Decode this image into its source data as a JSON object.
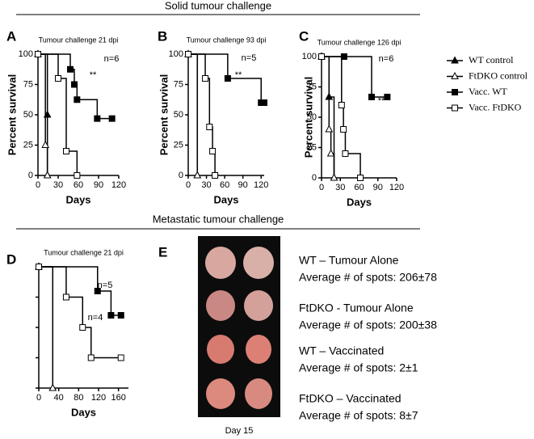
{
  "headings": {
    "solid": "Solid tumour challenge",
    "metastatic": "Metastatic tumour challenge"
  },
  "chart_data": [
    {
      "type": "step",
      "panel_label": "A",
      "title": "Tumour challenge 21 dpi",
      "xlabel": "Days",
      "ylabel": "Percent survival",
      "xlim": [
        0,
        120
      ],
      "xticks": [
        0,
        30,
        60,
        90,
        120
      ],
      "ylim": [
        0,
        100
      ],
      "yticks": [
        0,
        25,
        50,
        75,
        100
      ],
      "ytick_labels": true,
      "annotations": [
        "n=6",
        "**"
      ],
      "series": [
        {
          "name": "WT control",
          "color": "#000000",
          "marker": "triangle",
          "filled": true,
          "x": [
            0,
            14,
            14
          ],
          "values": [
            100,
            50,
            0
          ]
        },
        {
          "name": "FtDKO control",
          "color": "#000000",
          "marker": "triangle",
          "filled": false,
          "x": [
            0,
            11,
            14
          ],
          "values": [
            100,
            25,
            0
          ]
        },
        {
          "name": "Vacc. WT",
          "color": "#000000",
          "marker": "square",
          "filled": true,
          "x": [
            0,
            48,
            54,
            58,
            88,
            110
          ],
          "values": [
            100,
            87.5,
            75,
            62.5,
            46.9,
            46.9
          ]
        },
        {
          "name": "Vacc. FtDKO",
          "color": "#000000",
          "marker": "square",
          "filled": false,
          "x": [
            0,
            30,
            42,
            58
          ],
          "values": [
            100,
            80,
            20,
            0
          ]
        }
      ]
    },
    {
      "type": "step",
      "panel_label": "B",
      "title": "Tumour challenge 93 dpi",
      "xlabel": "Days",
      "ylabel": "Percent survival",
      "xlim": [
        0,
        125
      ],
      "xticks": [
        0,
        30,
        60,
        90,
        120
      ],
      "ylim": [
        0,
        100
      ],
      "yticks": [
        0,
        25,
        50,
        75,
        100
      ],
      "ytick_labels": true,
      "annotations": [
        "n=5",
        "**"
      ],
      "series": [
        {
          "name": "WT control",
          "color": "#000000",
          "marker": "triangle",
          "filled": true,
          "x": [
            0,
            15
          ],
          "values": [
            100,
            0
          ]
        },
        {
          "name": "FtDKO control",
          "color": "#000000",
          "marker": "triangle",
          "filled": false,
          "x": [
            0,
            15
          ],
          "values": [
            100,
            0
          ]
        },
        {
          "name": "Vacc. WT",
          "color": "#000000",
          "marker": "square",
          "filled": true,
          "x": [
            0,
            65,
            120,
            125
          ],
          "values": [
            100,
            80,
            60,
            60
          ]
        },
        {
          "name": "Vacc. FtDKO",
          "color": "#000000",
          "marker": "square",
          "filled": false,
          "x": [
            0,
            28,
            35,
            40,
            44
          ],
          "values": [
            100,
            80,
            40,
            20,
            0
          ]
        }
      ]
    },
    {
      "type": "step",
      "panel_label": "C",
      "title": "Tumour challenge 126 dpi",
      "xlabel": "Days",
      "ylabel": "Percent survival",
      "xlim": [
        0,
        120
      ],
      "xticks": [
        0,
        30,
        60,
        90,
        120
      ],
      "ylim": [
        0,
        100
      ],
      "yticks": [
        0,
        25,
        50,
        75,
        100
      ],
      "ytick_labels": true,
      "annotations": [
        "n=6",
        "**"
      ],
      "series": [
        {
          "name": "WT control",
          "color": "#000000",
          "marker": "triangle",
          "filled": true,
          "x": [
            0,
            12,
            20
          ],
          "values": [
            100,
            66.7,
            0
          ]
        },
        {
          "name": "FtDKO control",
          "color": "#000000",
          "marker": "triangle",
          "filled": false,
          "x": [
            0,
            12,
            15,
            20
          ],
          "values": [
            100,
            40,
            20,
            0
          ]
        },
        {
          "name": "Vacc. WT",
          "color": "#000000",
          "marker": "square",
          "filled": true,
          "x": [
            0,
            36,
            80,
            105
          ],
          "values": [
            100,
            100,
            66.7,
            66.7
          ]
        },
        {
          "name": "Vacc. FtDKO",
          "color": "#000000",
          "marker": "square",
          "filled": false,
          "x": [
            0,
            32,
            35,
            38,
            62
          ],
          "values": [
            100,
            60,
            40,
            20,
            0
          ]
        }
      ]
    },
    {
      "type": "step",
      "panel_label": "D",
      "title": "Tumour challenge 21 dpi",
      "xlabel": "Days",
      "xlim": [
        0,
        180
      ],
      "xticks": [
        0,
        40,
        80,
        120,
        160
      ],
      "ylim": [
        0,
        100
      ],
      "yticks": [
        0,
        25,
        50,
        75,
        100
      ],
      "ytick_labels": false,
      "annotations": [
        "n=5",
        "n=4"
      ],
      "series": [
        {
          "name": "WT control",
          "color": "#000000",
          "marker": "triangle",
          "filled": true,
          "x": [
            0,
            28
          ],
          "values": [
            100,
            0
          ]
        },
        {
          "name": "FtDKO control",
          "color": "#000000",
          "marker": "triangle",
          "filled": false,
          "x": [
            0,
            28
          ],
          "values": [
            100,
            0
          ]
        },
        {
          "name": "Vacc. WT",
          "color": "#000000",
          "marker": "square",
          "filled": true,
          "x": [
            0,
            118,
            145,
            165
          ],
          "values": [
            100,
            80,
            60,
            60
          ]
        },
        {
          "name": "Vacc. FtDKO",
          "color": "#000000",
          "marker": "square",
          "filled": false,
          "x": [
            0,
            55,
            88,
            105,
            165
          ],
          "values": [
            100,
            75,
            50,
            25,
            25
          ]
        }
      ]
    }
  ],
  "panel_e": {
    "label": "E",
    "day": "Day 15",
    "groups": [
      {
        "name": "WT – Tumour Alone",
        "spots": "Average # of spots: 206±78"
      },
      {
        "name": "FtDKO - Tumour Alone",
        "spots": "Average # of spots: 200±38"
      },
      {
        "name": "WT – Vaccinated",
        "spots": "Average # of spots: 2±1"
      },
      {
        "name": "FtDKO – Vaccinated",
        "spots": "Average # of spots: 8±7"
      }
    ]
  }
}
